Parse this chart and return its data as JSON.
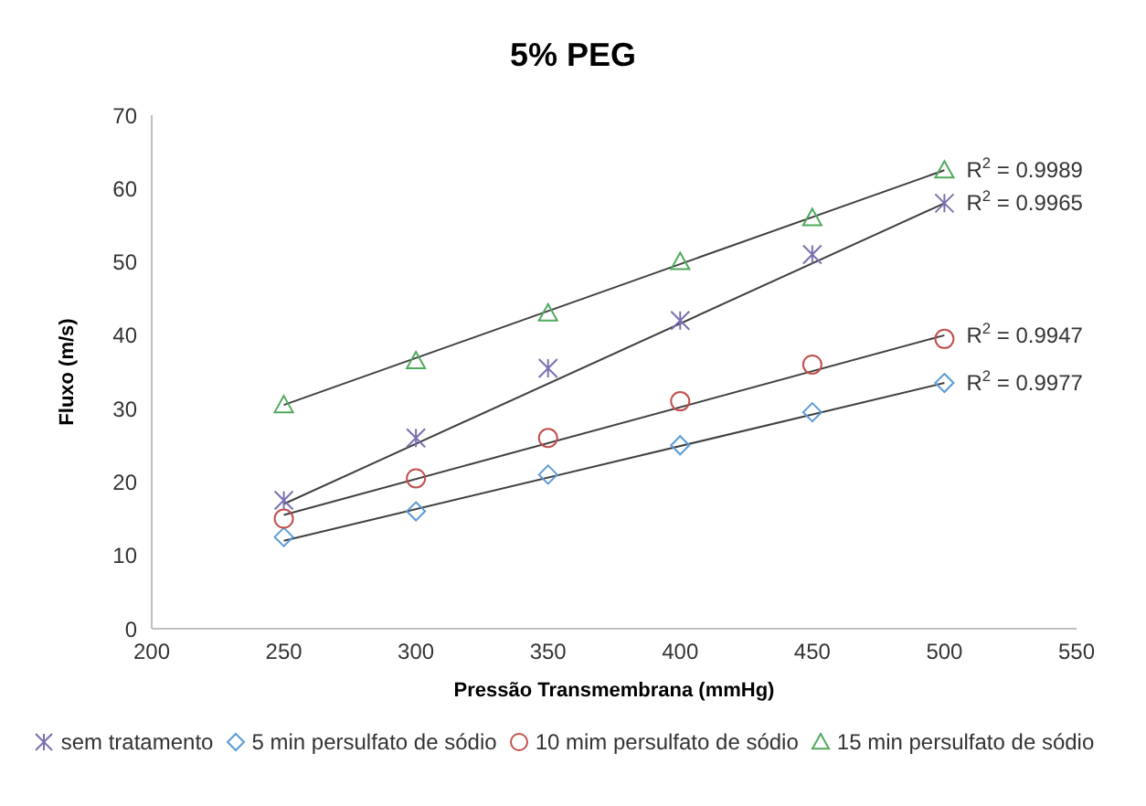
{
  "chart_data": {
    "type": "scatter",
    "title": "5% PEG",
    "xlabel": "Pressão Transmembrana (mmHg)",
    "ylabel": "Fluxo (m/s)",
    "x": [
      250,
      300,
      350,
      400,
      450,
      500
    ],
    "series": [
      {
        "name": "sem tratamento",
        "color": "#7b6fb0",
        "marker": "cross",
        "values": [
          17.5,
          26,
          35.5,
          42,
          51,
          58
        ]
      },
      {
        "name": "5 min persulfato de sódio",
        "color": "#5b9bd5",
        "marker": "diamond",
        "values": [
          12.5,
          16,
          21,
          25,
          29.5,
          33.5
        ]
      },
      {
        "name": "10 mim persulfato de sódio",
        "color": "#c0504d",
        "marker": "circle",
        "values": [
          15,
          20.5,
          26,
          31,
          36,
          39.5
        ]
      },
      {
        "name": "15 min persulfato de sódio",
        "color": "#4faa5c",
        "marker": "triangle",
        "values": [
          30.5,
          36.5,
          43,
          50,
          56,
          62.5
        ]
      },
      {
        "type": "line",
        "color": "#404040",
        "marker": "none",
        "values": [
          30.5,
          null,
          null,
          null,
          null,
          62.5
        ]
      },
      {
        "type": "line",
        "color": "#404040",
        "marker": "none",
        "values": [
          17,
          null,
          null,
          null,
          null,
          58
        ]
      },
      {
        "type": "line",
        "color": "#404040",
        "marker": "none",
        "values": [
          15.5,
          null,
          null,
          null,
          null,
          40
        ]
      },
      {
        "type": "line",
        "color": "#404040",
        "marker": "none",
        "values": [
          12,
          null,
          null,
          null,
          null,
          33.5
        ]
      }
    ],
    "annotations": [
      "R$^{2}$ = 0.9989",
      "R$^{2}$ = 0.9965",
      "R$^{2}$ = 0.9947",
      "R$^{2}$ = 0.9977"
    ],
    "xlim": [
      200,
      550
    ],
    "xticks": [
      200,
      250,
      300,
      350,
      400,
      450,
      500,
      550
    ],
    "ylim": [
      0,
      70
    ],
    "yticks": [
      0,
      10,
      20,
      30,
      40,
      50,
      60,
      70
    ],
    "legend": "bottom"
  }
}
